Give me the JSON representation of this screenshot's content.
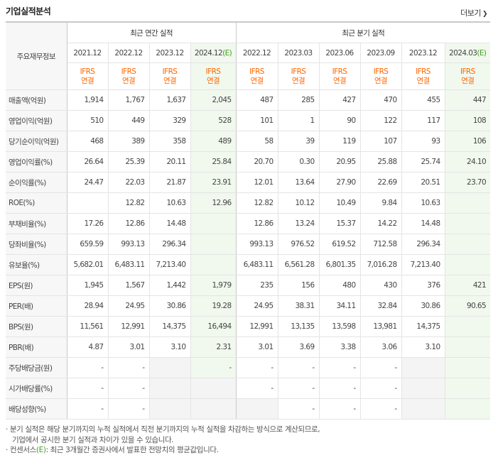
{
  "header": {
    "title": "기업실적분석",
    "more_label": "더보기"
  },
  "table": {
    "corner_label": "주요재무정보",
    "group_annual": "최근 연간 실적",
    "group_quarter": "최근 분기 실적",
    "annual_periods": [
      {
        "label": "2021.12",
        "est": ""
      },
      {
        "label": "2022.12",
        "est": ""
      },
      {
        "label": "2023.12",
        "est": ""
      },
      {
        "label": "2024.12",
        "est": "(E)"
      }
    ],
    "quarter_periods": [
      {
        "label": "2022.12",
        "est": ""
      },
      {
        "label": "2023.03",
        "est": ""
      },
      {
        "label": "2023.06",
        "est": ""
      },
      {
        "label": "2023.09",
        "est": ""
      },
      {
        "label": "2023.12",
        "est": ""
      },
      {
        "label": "2024.03",
        "est": "(E)"
      }
    ],
    "ifrs_top": "IFRS",
    "ifrs_bottom": "연결",
    "rows": [
      {
        "label": "매출액(억원)",
        "values": [
          "1,914",
          "1,767",
          "1,637",
          "2,045",
          "487",
          "285",
          "427",
          "470",
          "455",
          "447"
        ]
      },
      {
        "label": "영업이익(억원)",
        "values": [
          "510",
          "449",
          "329",
          "528",
          "101",
          "1",
          "90",
          "122",
          "117",
          "108"
        ]
      },
      {
        "label": "당기순이익(억원)",
        "values": [
          "468",
          "389",
          "358",
          "489",
          "58",
          "39",
          "119",
          "107",
          "93",
          "106"
        ]
      },
      {
        "label": "영업이익률(%)",
        "values": [
          "26.64",
          "25.39",
          "20.11",
          "25.84",
          "20.70",
          "0.30",
          "20.95",
          "25.88",
          "25.74",
          "24.10"
        ]
      },
      {
        "label": "순이익률(%)",
        "values": [
          "24.47",
          "22.03",
          "21.87",
          "23.91",
          "12.01",
          "13.64",
          "27.90",
          "22.69",
          "20.51",
          "23.70"
        ]
      },
      {
        "label": "ROE(%)",
        "values": [
          "",
          "12.82",
          "10.63",
          "12.96",
          "12.82",
          "10.12",
          "10.49",
          "9.84",
          "10.63",
          ""
        ]
      },
      {
        "label": "부채비율(%)",
        "values": [
          "17.26",
          "12.86",
          "14.48",
          "",
          "12.86",
          "13.24",
          "15.37",
          "14.22",
          "14.48",
          ""
        ]
      },
      {
        "label": "당좌비율(%)",
        "values": [
          "659.59",
          "993.13",
          "296.34",
          "",
          "993.13",
          "976.52",
          "619.52",
          "712.58",
          "296.34",
          ""
        ]
      },
      {
        "label": "유보율(%)",
        "values": [
          "5,682.01",
          "6,483.11",
          "7,213.40",
          "",
          "6,483.11",
          "6,561.28",
          "6,801.35",
          "7,016.28",
          "7,213.40",
          ""
        ]
      },
      {
        "label": "EPS(원)",
        "values": [
          "1,945",
          "1,567",
          "1,442",
          "1,979",
          "235",
          "156",
          "480",
          "430",
          "376",
          "421"
        ]
      },
      {
        "label": "PER(배)",
        "values": [
          "28.94",
          "24.95",
          "30.86",
          "19.28",
          "24.95",
          "38.31",
          "34.11",
          "32.84",
          "30.86",
          "90.65"
        ]
      },
      {
        "label": "BPS(원)",
        "values": [
          "11,561",
          "12,991",
          "14,375",
          "16,494",
          "12,991",
          "13,135",
          "13,598",
          "13,981",
          "14,375",
          ""
        ]
      },
      {
        "label": "PBR(배)",
        "values": [
          "4.87",
          "3.01",
          "3.10",
          "2.31",
          "3.01",
          "3.69",
          "3.38",
          "3.06",
          "3.10",
          ""
        ]
      },
      {
        "label": "주당배당금(원)",
        "values": [
          "-",
          "-",
          "",
          "-",
          "-",
          "-",
          "-",
          "-",
          "",
          ""
        ]
      },
      {
        "label": "시가배당률(%)",
        "values": [
          "-",
          "-",
          "",
          "",
          "-",
          "-",
          "-",
          "-",
          "",
          ""
        ]
      },
      {
        "label": "배당성향(%)",
        "values": [
          "-",
          "-",
          "",
          "",
          "",
          "-",
          "-",
          "-",
          "",
          ""
        ]
      }
    ],
    "gray_cells": [
      [
        13,
        2
      ],
      [
        13,
        8
      ],
      [
        14,
        2
      ],
      [
        14,
        3
      ],
      [
        14,
        8
      ],
      [
        15,
        2
      ],
      [
        15,
        3
      ],
      [
        15,
        4
      ],
      [
        15,
        8
      ]
    ]
  },
  "notes": {
    "line1": "· 분기 실적은 해당 분기까지의 누적 실적에서 직전 분기까지의 누적 실적을 차감하는 방식으로 계산되므로,",
    "line2": "기업에서 공시한 분기 실적과 차이가 있을 수 있습니다.",
    "line3_pre": "· 컨센서스",
    "line3_est": "(E)",
    "line3_post": ": 최근 3개월간 증권사에서 발표한 전망치의 평균값입니다."
  }
}
